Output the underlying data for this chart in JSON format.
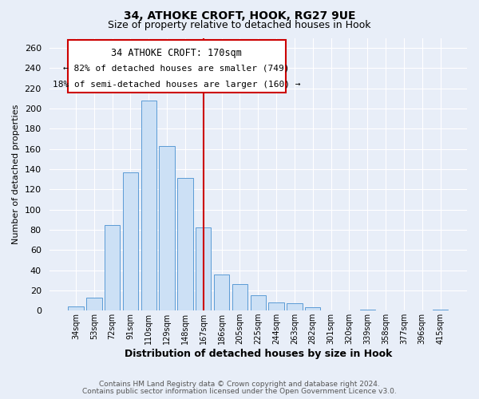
{
  "title_line1": "34, ATHOKE CROFT, HOOK, RG27 9UE",
  "title_line2": "Size of property relative to detached houses in Hook",
  "xlabel": "Distribution of detached houses by size in Hook",
  "ylabel": "Number of detached properties",
  "categories": [
    "34sqm",
    "53sqm",
    "72sqm",
    "91sqm",
    "110sqm",
    "129sqm",
    "148sqm",
    "167sqm",
    "186sqm",
    "205sqm",
    "225sqm",
    "244sqm",
    "263sqm",
    "282sqm",
    "301sqm",
    "320sqm",
    "339sqm",
    "358sqm",
    "377sqm",
    "396sqm",
    "415sqm"
  ],
  "values": [
    4,
    13,
    85,
    137,
    208,
    163,
    131,
    82,
    36,
    26,
    15,
    8,
    7,
    3,
    0,
    0,
    1,
    0,
    0,
    0,
    1
  ],
  "bar_color": "#cce0f5",
  "bar_edgecolor": "#5b9bd5",
  "highlight_index": 7,
  "highlight_line_color": "#cc0000",
  "ylim": [
    0,
    270
  ],
  "yticks": [
    0,
    20,
    40,
    60,
    80,
    100,
    120,
    140,
    160,
    180,
    200,
    220,
    240,
    260
  ],
  "annotation_title": "34 ATHOKE CROFT: 170sqm",
  "annotation_line1": "← 82% of detached houses are smaller (749)",
  "annotation_line2": "18% of semi-detached houses are larger (160) →",
  "annotation_box_edgecolor": "#cc0000",
  "footer_line1": "Contains HM Land Registry data © Crown copyright and database right 2024.",
  "footer_line2": "Contains public sector information licensed under the Open Government Licence v3.0.",
  "background_color": "#e8eef8",
  "plot_bg_color": "#e8eef8",
  "grid_color": "#ffffff",
  "title1_fontsize": 10,
  "title2_fontsize": 9
}
